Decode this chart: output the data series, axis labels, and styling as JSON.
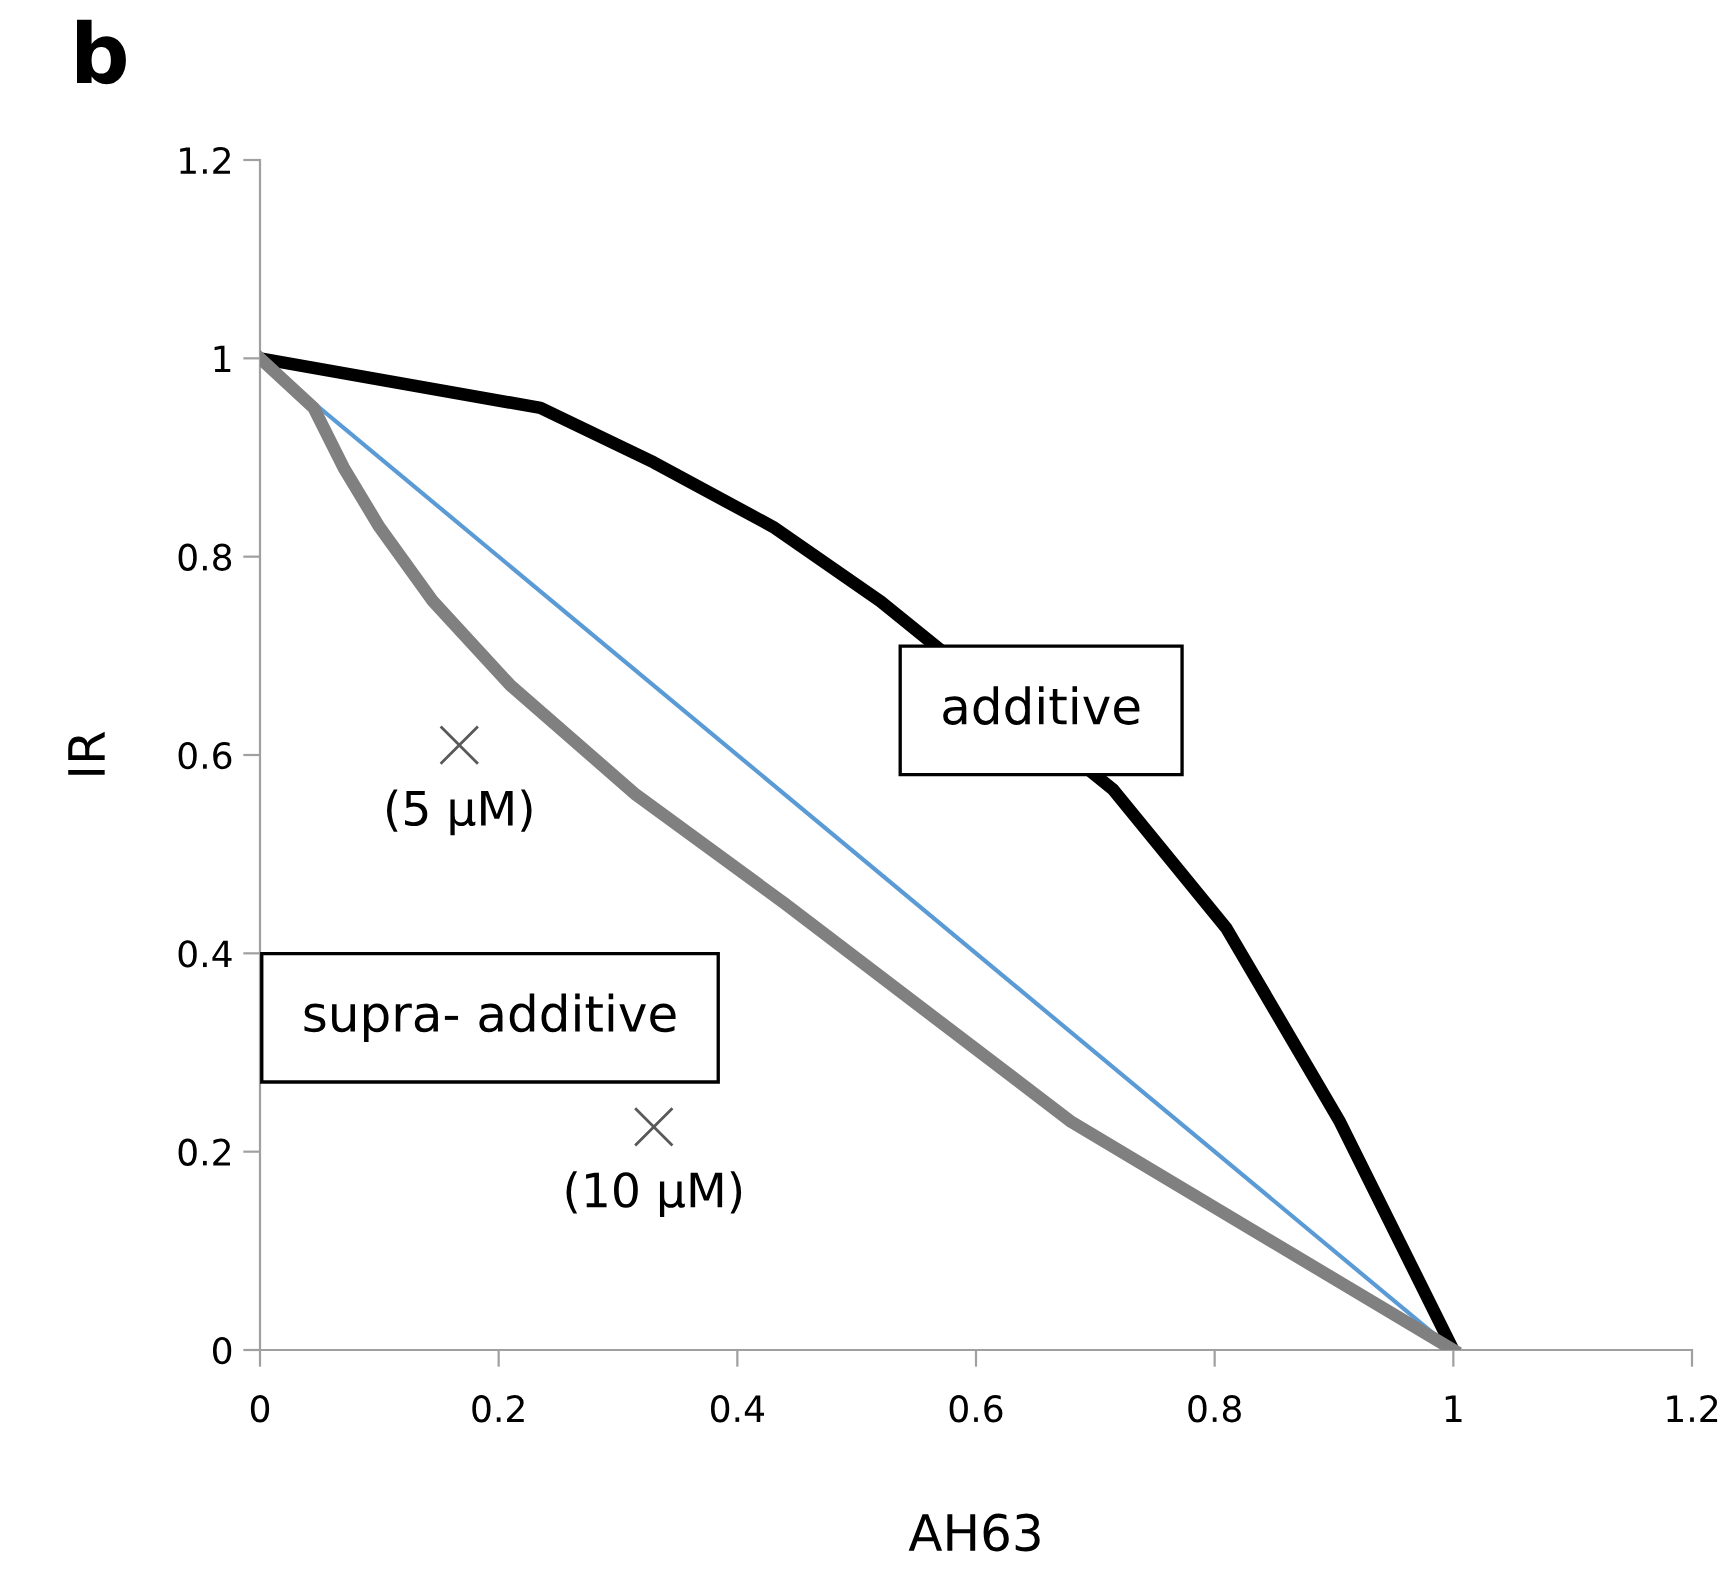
{
  "chart_data": {
    "type": "line",
    "title": "b",
    "xlabel": "AH63",
    "ylabel": "IR",
    "xlim": [
      0,
      1.2
    ],
    "xticks": [
      0,
      0.2,
      0.4,
      0.6,
      0.8,
      1,
      1.2
    ],
    "ylim": [
      0,
      1.2
    ],
    "yticks": [
      0,
      0.2,
      0.4,
      0.6,
      0.8,
      1,
      1.2
    ],
    "grid": false,
    "legend": false,
    "marker": "none",
    "line_style": "solid",
    "series": [
      {
        "color": "#000000",
        "x": [
          0,
          0.235,
          0.33,
          0.43,
          0.52,
          0.715,
          0.81,
          0.905,
          1
        ],
        "values": [
          1,
          0.95,
          0.895,
          0.83,
          0.755,
          0.565,
          0.425,
          0.23,
          0
        ]
      },
      {
        "color": "#5b9bd5",
        "x": [
          0,
          1
        ],
        "values": [
          1,
          0
        ]
      },
      {
        "color": "#808080",
        "x": [
          0,
          0.045,
          0.07,
          0.1,
          0.145,
          0.21,
          0.315,
          0.44,
          0.68,
          1
        ],
        "values": [
          1,
          0.95,
          0.89,
          0.83,
          0.755,
          0.67,
          0.56,
          0.45,
          0.23,
          0
        ]
      },
      {
        "type": "scatter",
        "marker": "cross",
        "color": "#595959",
        "x": [
          0.167,
          0.33
        ],
        "values": [
          0.61,
          0.225
        ]
      }
    ],
    "annotations": [
      {
        "text": "(5 µM)",
        "x": 0.167,
        "y": 0.61
      },
      {
        "text": "(10 µM)",
        "x": 0.33,
        "y": 0.225
      },
      "additive",
      "supra- additive"
    ]
  }
}
